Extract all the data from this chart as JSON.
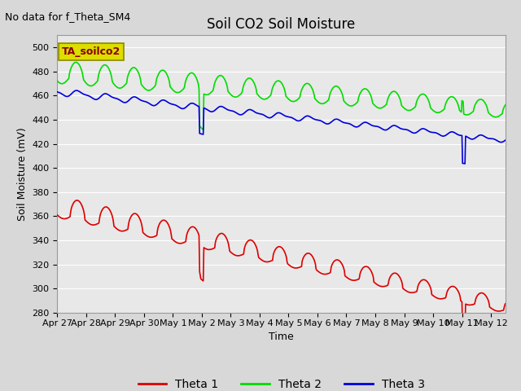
{
  "title": "Soil CO2 Soil Moisture",
  "no_data_text": "No data for f_Theta_SM4",
  "xlabel": "Time",
  "ylabel": "Soil Moisture (mV)",
  "ylim": [
    280,
    510
  ],
  "yticks": [
    280,
    300,
    320,
    340,
    360,
    380,
    400,
    420,
    440,
    460,
    480,
    500
  ],
  "x_tick_labels": [
    "Apr 27",
    "Apr 28",
    "Apr 29",
    "Apr 30",
    "May 1",
    "May 2",
    "May 3",
    "May 4",
    "May 5",
    "May 6",
    "May 7",
    "May 8",
    "May 9",
    "May 10",
    "May 11",
    "May 12"
  ],
  "annotation_label": "TA_soilco2",
  "annotation_color": "#dddd00",
  "annotation_edge_color": "#888800",
  "bg_color": "#d8d8d8",
  "plot_bg_color": "#e8e8e8",
  "theta1_color": "#dd0000",
  "theta2_color": "#00dd00",
  "theta3_color": "#0000dd",
  "line_width": 1.2,
  "title_fontsize": 12,
  "axis_label_fontsize": 9,
  "tick_fontsize": 8,
  "legend_fontsize": 10,
  "no_data_fontsize": 9
}
